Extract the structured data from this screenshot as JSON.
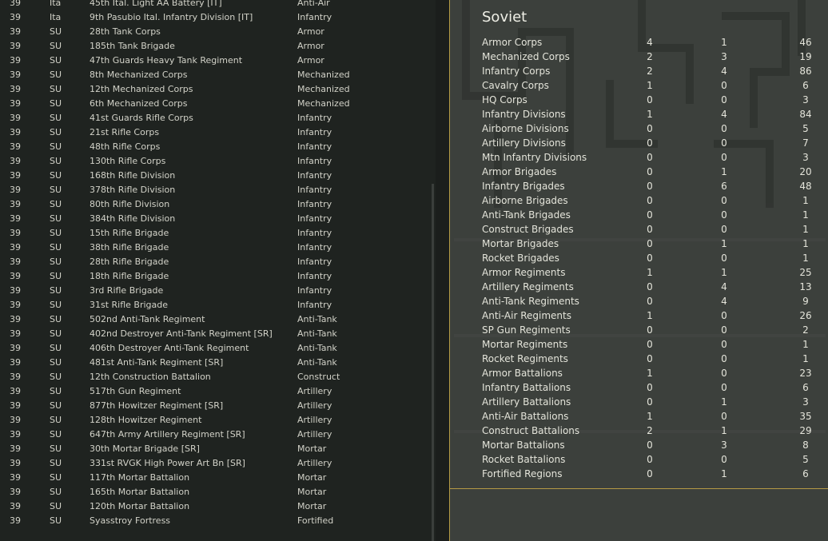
{
  "unit_list": [
    {
      "turn": "39",
      "nation": "Ita",
      "name": "45th Ital. Light AA Battery [IT]",
      "type": "Anti-Air"
    },
    {
      "turn": "39",
      "nation": "Ita",
      "name": "9th Pasubio Ital. Infantry Division [IT]",
      "type": "Infantry"
    },
    {
      "turn": "39",
      "nation": "SU",
      "name": "28th Tank Corps",
      "type": "Armor"
    },
    {
      "turn": "39",
      "nation": "SU",
      "name": "185th Tank Brigade",
      "type": "Armor"
    },
    {
      "turn": "39",
      "nation": "SU",
      "name": "47th Guards Heavy Tank Regiment",
      "type": "Armor"
    },
    {
      "turn": "39",
      "nation": "SU",
      "name": "8th Mechanized Corps",
      "type": "Mechanized"
    },
    {
      "turn": "39",
      "nation": "SU",
      "name": "12th Mechanized Corps",
      "type": "Mechanized"
    },
    {
      "turn": "39",
      "nation": "SU",
      "name": "6th Mechanized Corps",
      "type": "Mechanized"
    },
    {
      "turn": "39",
      "nation": "SU",
      "name": "41st Guards Rifle Corps",
      "type": "Infantry"
    },
    {
      "turn": "39",
      "nation": "SU",
      "name": "21st Rifle Corps",
      "type": "Infantry"
    },
    {
      "turn": "39",
      "nation": "SU",
      "name": "48th Rifle Corps",
      "type": "Infantry"
    },
    {
      "turn": "39",
      "nation": "SU",
      "name": "130th Rifle Corps",
      "type": "Infantry"
    },
    {
      "turn": "39",
      "nation": "SU",
      "name": "168th Rifle Division",
      "type": "Infantry"
    },
    {
      "turn": "39",
      "nation": "SU",
      "name": "378th Rifle Division",
      "type": "Infantry"
    },
    {
      "turn": "39",
      "nation": "SU",
      "name": "80th Rifle Division",
      "type": "Infantry"
    },
    {
      "turn": "39",
      "nation": "SU",
      "name": "384th Rifle Division",
      "type": "Infantry"
    },
    {
      "turn": "39",
      "nation": "SU",
      "name": "15th Rifle Brigade",
      "type": "Infantry"
    },
    {
      "turn": "39",
      "nation": "SU",
      "name": "38th Rifle Brigade",
      "type": "Infantry"
    },
    {
      "turn": "39",
      "nation": "SU",
      "name": "28th Rifle Brigade",
      "type": "Infantry"
    },
    {
      "turn": "39",
      "nation": "SU",
      "name": "18th Rifle Brigade",
      "type": "Infantry"
    },
    {
      "turn": "39",
      "nation": "SU",
      "name": "3rd Rifle Brigade",
      "type": "Infantry"
    },
    {
      "turn": "39",
      "nation": "SU",
      "name": "31st Rifle Brigade",
      "type": "Infantry"
    },
    {
      "turn": "39",
      "nation": "SU",
      "name": "502nd Anti-Tank Regiment",
      "type": "Anti-Tank"
    },
    {
      "turn": "39",
      "nation": "SU",
      "name": "402nd Destroyer Anti-Tank Regiment [SR]",
      "type": "Anti-Tank"
    },
    {
      "turn": "39",
      "nation": "SU",
      "name": "406th Destroyer Anti-Tank Regiment",
      "type": "Anti-Tank"
    },
    {
      "turn": "39",
      "nation": "SU",
      "name": "481st Anti-Tank Regiment [SR]",
      "type": "Anti-Tank"
    },
    {
      "turn": "39",
      "nation": "SU",
      "name": "12th Construction Battalion",
      "type": "Construct"
    },
    {
      "turn": "39",
      "nation": "SU",
      "name": "517th Gun Regiment",
      "type": "Artillery"
    },
    {
      "turn": "39",
      "nation": "SU",
      "name": "877th Howitzer Regiment [SR]",
      "type": "Artillery"
    },
    {
      "turn": "39",
      "nation": "SU",
      "name": "128th Howitzer Regiment",
      "type": "Artillery"
    },
    {
      "turn": "39",
      "nation": "SU",
      "name": "647th Army Artillery Regiment [SR]",
      "type": "Artillery"
    },
    {
      "turn": "39",
      "nation": "SU",
      "name": "30th Mortar Brigade [SR]",
      "type": "Mortar"
    },
    {
      "turn": "39",
      "nation": "SU",
      "name": "331st RVGK High Power Art Bn [SR]",
      "type": "Artillery"
    },
    {
      "turn": "39",
      "nation": "SU",
      "name": "117th Mortar Battalion",
      "type": "Mortar"
    },
    {
      "turn": "39",
      "nation": "SU",
      "name": "165th Mortar Battalion",
      "type": "Mortar"
    },
    {
      "turn": "39",
      "nation": "SU",
      "name": "120th Mortar Battalion",
      "type": "Mortar"
    },
    {
      "turn": "39",
      "nation": "SU",
      "name": "Syasstroy Fortress",
      "type": "Fortified"
    }
  ],
  "soviet_panel": {
    "title": "Soviet",
    "rows": [
      {
        "label": "Armor Corps",
        "a": "4",
        "b": "1",
        "c": "46"
      },
      {
        "label": "Mechanized Corps",
        "a": "2",
        "b": "3",
        "c": "19"
      },
      {
        "label": "Infantry Corps",
        "a": "2",
        "b": "4",
        "c": "86"
      },
      {
        "label": "Cavalry Corps",
        "a": "1",
        "b": "0",
        "c": "6"
      },
      {
        "label": "HQ Corps",
        "a": "0",
        "b": "0",
        "c": "3"
      },
      {
        "label": "Infantry Divisions",
        "a": "1",
        "b": "4",
        "c": "84"
      },
      {
        "label": "Airborne Divisions",
        "a": "0",
        "b": "0",
        "c": "5"
      },
      {
        "label": "Artillery Divisions",
        "a": "0",
        "b": "0",
        "c": "7"
      },
      {
        "label": "Mtn Infantry Divisions",
        "a": "0",
        "b": "0",
        "c": "3"
      },
      {
        "label": "Armor Brigades",
        "a": "0",
        "b": "1",
        "c": "20"
      },
      {
        "label": "Infantry Brigades",
        "a": "0",
        "b": "6",
        "c": "48"
      },
      {
        "label": "Airborne Brigades",
        "a": "0",
        "b": "0",
        "c": "1"
      },
      {
        "label": "Anti-Tank Brigades",
        "a": "0",
        "b": "0",
        "c": "1"
      },
      {
        "label": "Construct Brigades",
        "a": "0",
        "b": "0",
        "c": "1"
      },
      {
        "label": "Mortar Brigades",
        "a": "0",
        "b": "1",
        "c": "1"
      },
      {
        "label": "Rocket Brigades",
        "a": "0",
        "b": "0",
        "c": "1"
      },
      {
        "label": "Armor Regiments",
        "a": "1",
        "b": "1",
        "c": "25"
      },
      {
        "label": "Artillery Regiments",
        "a": "0",
        "b": "4",
        "c": "13"
      },
      {
        "label": "Anti-Tank Regiments",
        "a": "0",
        "b": "4",
        "c": "9"
      },
      {
        "label": "Anti-Air Regiments",
        "a": "1",
        "b": "0",
        "c": "26"
      },
      {
        "label": "SP Gun Regiments",
        "a": "0",
        "b": "0",
        "c": "2"
      },
      {
        "label": "Mortar Regiments",
        "a": "0",
        "b": "0",
        "c": "1"
      },
      {
        "label": "Rocket Regiments",
        "a": "0",
        "b": "0",
        "c": "1"
      },
      {
        "label": "Armor Battalions",
        "a": "1",
        "b": "0",
        "c": "23"
      },
      {
        "label": "Infantry Battalions",
        "a": "0",
        "b": "0",
        "c": "6"
      },
      {
        "label": "Artillery Battalions",
        "a": "0",
        "b": "1",
        "c": "3"
      },
      {
        "label": "Anti-Air Battalions",
        "a": "1",
        "b": "0",
        "c": "35"
      },
      {
        "label": "Construct Battalions",
        "a": "2",
        "b": "1",
        "c": "29"
      },
      {
        "label": "Mortar Battalions",
        "a": "0",
        "b": "3",
        "c": "8"
      },
      {
        "label": "Rocket Battalions",
        "a": "0",
        "b": "0",
        "c": "5"
      },
      {
        "label": "Fortified Regions",
        "a": "0",
        "b": "1",
        "c": "6"
      }
    ]
  },
  "colors": {
    "border_accent": "#b59a45",
    "list_background": "#1f2320",
    "panel_background": "#3b3f3b"
  }
}
